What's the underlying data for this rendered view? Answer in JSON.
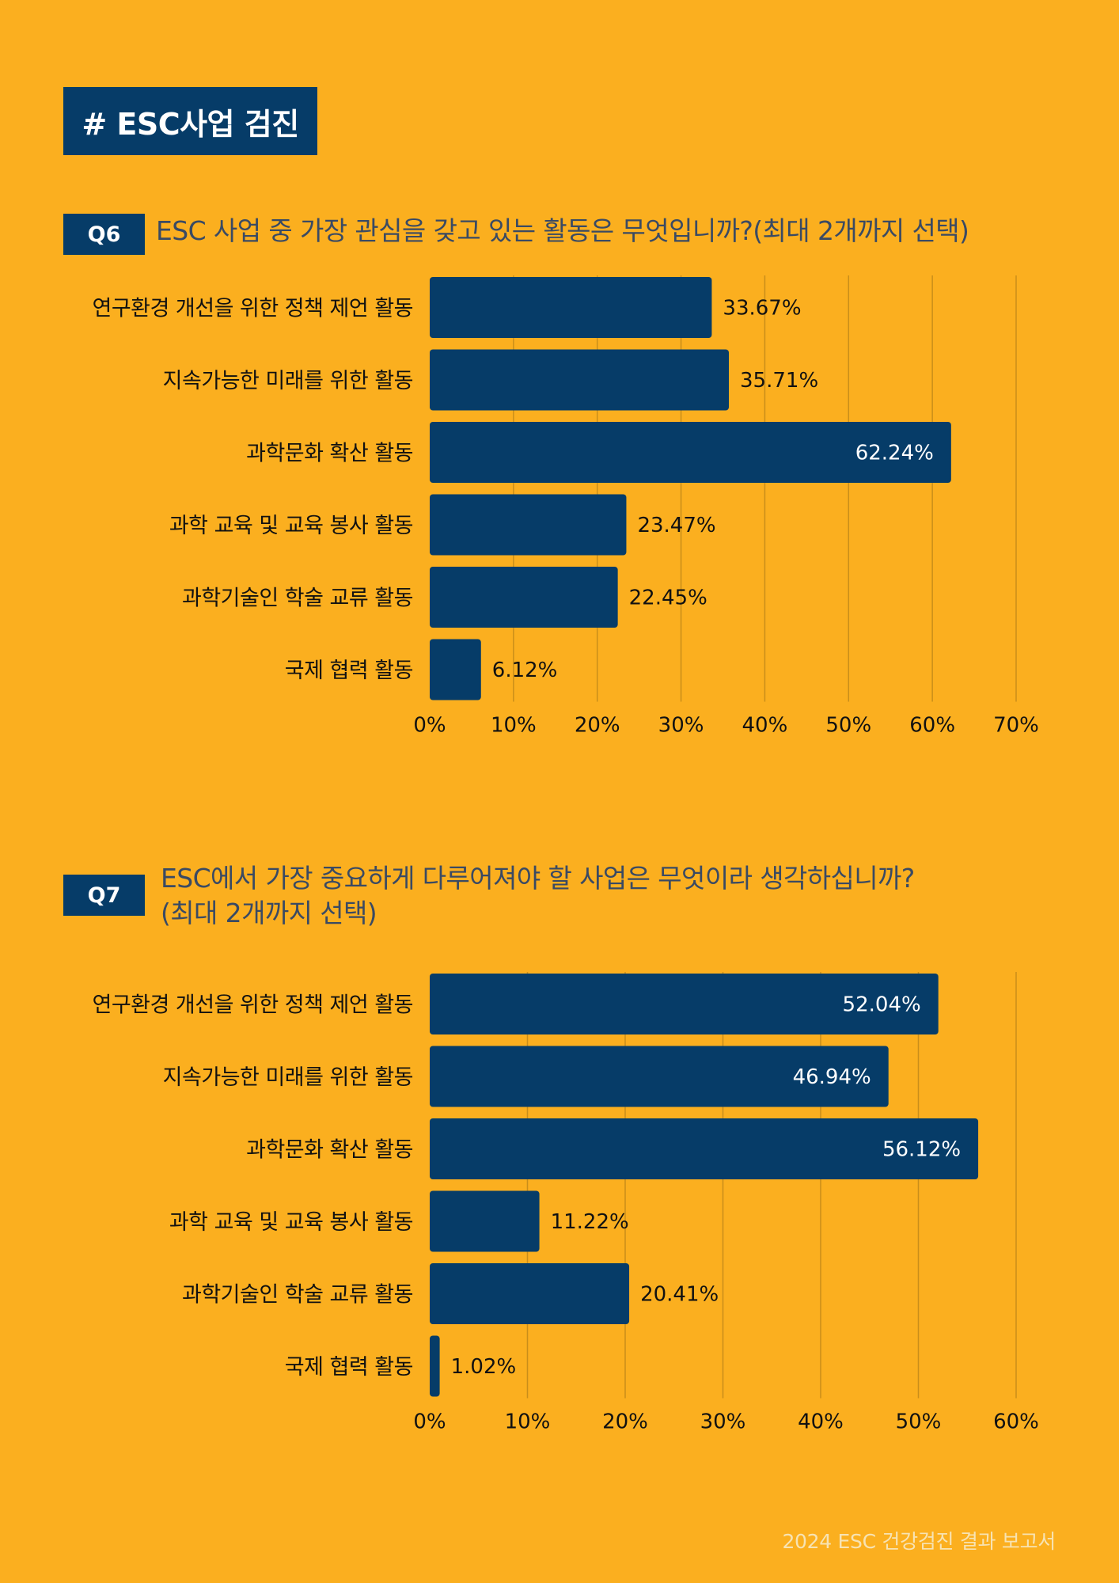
{
  "header": {
    "tag": "# ESC사업 검진"
  },
  "colors": {
    "background": "#FBAF1F",
    "bar": "#063C68",
    "text": "#111111",
    "gridline": "#C98E1A"
  },
  "q6": {
    "badge": "Q6",
    "question": "ESC 사업 중 가장 관심을 갖고 있는 활동은 무엇입니까?(최대 2개까지 선택)"
  },
  "q7": {
    "badge": "Q7",
    "question_line1": "ESC에서 가장 중요하게 다루어져야 할 사업은 무엇이라 생각하십니까?",
    "question_line2": "(최대 2개까지 선택)"
  },
  "footer": {
    "text": "2024 ESC 건강검진 결과 보고서"
  },
  "chart_data": [
    {
      "type": "bar",
      "orientation": "horizontal",
      "categories": [
        "연구환경 개선을 위한 정책 제언 활동",
        "지속가능한 미래를 위한 활동",
        "과학문화 확산 활동",
        "과학 교육 및 교육 봉사 활동",
        "과학기술인 학술 교류 활동",
        "국제 협력 활동"
      ],
      "values": [
        33.67,
        35.71,
        62.24,
        23.47,
        22.45,
        6.12
      ],
      "data_labels": [
        "33.67%",
        "35.71%",
        "62.24%",
        "23.47%",
        "22.45%",
        "6.12%"
      ],
      "xlim": [
        0,
        70
      ],
      "xticks": [
        "0%",
        "10%",
        "20%",
        "30%",
        "40%",
        "50%",
        "60%",
        "70%"
      ],
      "grid": true
    },
    {
      "type": "bar",
      "orientation": "horizontal",
      "categories": [
        "연구환경 개선을 위한 정책 제언 활동",
        "지속가능한 미래를 위한 활동",
        "과학문화 확산 활동",
        "과학 교육 및 교육 봉사 활동",
        "과학기술인 학술 교류 활동",
        "국제 협력 활동"
      ],
      "values": [
        52.04,
        46.94,
        56.12,
        11.22,
        20.41,
        1.02
      ],
      "data_labels": [
        "52.04%",
        "46.94%",
        "56.12%",
        "11.22%",
        "20.41%",
        "1.02%"
      ],
      "xlim": [
        0,
        60
      ],
      "xticks": [
        "0%",
        "10%",
        "20%",
        "30%",
        "40%",
        "50%",
        "60%"
      ],
      "grid": true
    }
  ]
}
